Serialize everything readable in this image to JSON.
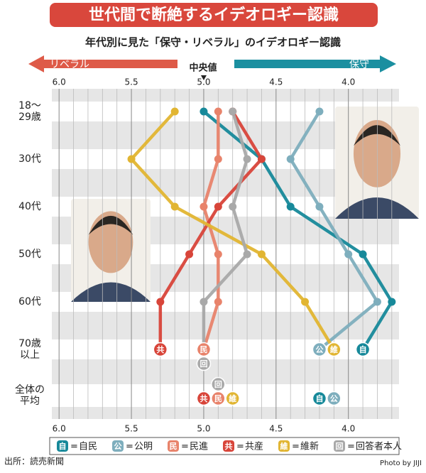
{
  "chart_data": {
    "type": "line",
    "title": "世代間で断絶するイデオロギー認識",
    "subtitle": "年代別に見た「保守・リベラル」のイデオロギー認識",
    "left_label": "リベラル",
    "center_label": "中央値",
    "right_label": "保守",
    "categories": [
      "18～\n29歳",
      "30代",
      "40代",
      "50代",
      "60代",
      "70歳\n以上"
    ],
    "average_label": "全体の\n平均",
    "xlim": [
      6.05,
      3.65
    ],
    "xticks": [
      {
        "value": 6,
        "label": "6.0"
      },
      5.5,
      {
        "value": 5,
        "label": "5.0"
      },
      4.5,
      {
        "value": 4,
        "label": "4.0"
      }
    ],
    "minor_xticks": [
      5.9,
      5.8,
      5.7,
      5.6,
      5.4,
      5.3,
      5.2,
      5.1,
      4.9,
      4.8,
      4.7,
      4.6,
      4.4,
      4.3,
      4.2,
      4.1,
      3.9,
      3.8,
      3.7
    ],
    "grid": true,
    "series": [
      {
        "name": "自民",
        "short": "自",
        "color": "#17899a",
        "values": [
          5.0,
          4.6,
          4.4,
          3.9,
          3.7,
          3.9
        ],
        "average": 4.2
      },
      {
        "name": "公明",
        "short": "公",
        "color": "#7eaebd",
        "values": [
          4.2,
          4.4,
          4.2,
          4.0,
          3.8,
          4.2
        ],
        "average": 4.1
      },
      {
        "name": "民進",
        "short": "民",
        "color": "#e8836b",
        "values": [
          4.9,
          4.9,
          5.0,
          4.9,
          4.9,
          5.0
        ],
        "average": 4.9
      },
      {
        "name": "共産",
        "short": "共",
        "color": "#d8453a",
        "values": [
          4.8,
          4.6,
          4.9,
          5.1,
          5.3,
          5.3
        ],
        "average": 5.0
      },
      {
        "name": "維新",
        "short": "維",
        "color": "#e1b532",
        "values": [
          5.2,
          5.5,
          5.2,
          4.6,
          4.3,
          4.1
        ],
        "average": 4.8
      },
      {
        "name": "回答者本人",
        "short": "回",
        "color": "#a9a9a9",
        "values": [
          4.8,
          4.7,
          4.8,
          4.7,
          5.0,
          5.0
        ],
        "average": 4.9
      }
    ],
    "legend_separator": "=",
    "source": "出所：読売新聞",
    "credit": "Photo by JIJI"
  }
}
